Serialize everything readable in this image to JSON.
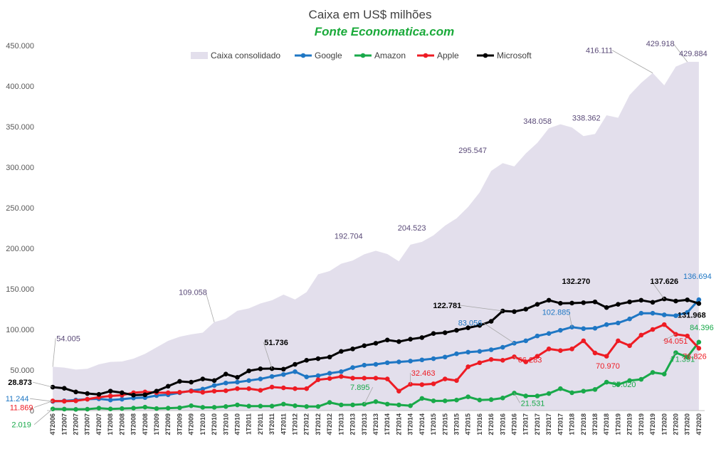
{
  "chart_data": {
    "type": "line",
    "title": "Caixa  em US$ milhões",
    "subtitle": "Fonte Economatica.com",
    "ylim": [
      0,
      450000
    ],
    "yticks": [
      "0",
      "50.000",
      "100.000",
      "150.000",
      "200.000",
      "250.000",
      "300.000",
      "350.000",
      "400.000",
      "450.000"
    ],
    "grid": false,
    "legend_position": "top",
    "categories": [
      "4T2006",
      "1T2007",
      "2T2007",
      "3T2007",
      "4T2007",
      "1T2008",
      "2T2008",
      "3T2008",
      "4T2008",
      "1T2009",
      "2T2009",
      "3T2009",
      "4T2009",
      "1T2010",
      "2T2010",
      "3T2010",
      "4T2010",
      "1T2011",
      "2T2011",
      "3T2011",
      "4T2011",
      "1T2012",
      "2T2012",
      "3T2012",
      "4T2012",
      "1T2013",
      "2T2013",
      "3T2013",
      "4T2013",
      "1T2014",
      "2T2014",
      "3T2014",
      "4T2014",
      "1T2015",
      "2T2015",
      "3T2015",
      "4T2015",
      "1T2016",
      "2T2016",
      "3T2016",
      "4T2016",
      "1T2017",
      "2T2017",
      "3T2017",
      "4T2017",
      "1T2018",
      "2T2018",
      "3T2018",
      "4T2018",
      "1T2019",
      "2T2019",
      "3T2019",
      "4T2019",
      "1T2020",
      "2T2020",
      "3T2020",
      "4T2020"
    ],
    "series": [
      {
        "name": "Caixa consolidado",
        "kind": "area",
        "color": "#e3dfec",
        "values": [
          54005,
          53000,
          50500,
          51500,
          57000,
          60000,
          60500,
          64000,
          70000,
          78000,
          86000,
          91000,
          94000,
          96000,
          109058,
          113000,
          123000,
          126000,
          132000,
          136000,
          143000,
          137000,
          146000,
          168000,
          172000,
          181000,
          185000,
          192704,
          197000,
          193000,
          184000,
          204523,
          208000,
          216000,
          228000,
          237000,
          251000,
          269000,
          295547,
          305000,
          301000,
          317000,
          330000,
          348058,
          353000,
          349000,
          338362,
          341000,
          364000,
          361000,
          389000,
          404000,
          416111,
          401000,
          424000,
          429918,
          429884
        ]
      },
      {
        "name": "Google",
        "kind": "line",
        "color": "#1f77c4",
        "values": [
          11244,
          12000,
          13000,
          14000,
          14500,
          13000,
          14000,
          15500,
          16000,
          18500,
          19500,
          22000,
          24500,
          26500,
          31000,
          34000,
          35000,
          37000,
          39000,
          42000,
          44500,
          48000,
          41500,
          43000,
          46000,
          48000,
          53000,
          56000,
          57000,
          59000,
          60000,
          61000,
          62500,
          64000,
          66000,
          70000,
          72000,
          73000,
          75000,
          78000,
          83056,
          86000,
          92000,
          95000,
          99000,
          102885,
          101000,
          101500,
          106000,
          108000,
          113000,
          120000,
          120000,
          118000,
          117000,
          121000,
          136694
        ]
      },
      {
        "name": "Amazon",
        "kind": "line",
        "color": "#19a94a",
        "values": [
          2019,
          1800,
          1500,
          1700,
          3000,
          2000,
          2500,
          3000,
          4200,
          2500,
          3000,
          3500,
          6000,
          4000,
          4000,
          5000,
          7000,
          5500,
          5500,
          5500,
          8000,
          6000,
          5000,
          5000,
          10000,
          7000,
          7000,
          7895,
          11000,
          8000,
          7000,
          6000,
          15000,
          12000,
          12000,
          13000,
          17000,
          13000,
          13500,
          15500,
          21531,
          18000,
          18000,
          21000,
          27000,
          22000,
          24000,
          26000,
          35000,
          32000,
          37020,
          38500,
          47000,
          45000,
          71391,
          66000,
          84396
        ]
      },
      {
        "name": "Apple",
        "kind": "line",
        "color": "#ee1c24",
        "values": [
          11869,
          11500,
          12000,
          14000,
          16500,
          18000,
          19000,
          22000,
          23000,
          22000,
          22000,
          22500,
          24000,
          22500,
          24000,
          24500,
          27000,
          27000,
          25000,
          29000,
          28000,
          27000,
          27000,
          38000,
          39500,
          42000,
          40000,
          40000,
          40000,
          39000,
          24000,
          32463,
          32000,
          33000,
          39000,
          37000,
          54000,
          59000,
          63000,
          62000,
          66283,
          60000,
          67000,
          76000,
          74000,
          76000,
          86000,
          70970,
          67000,
          86000,
          80000,
          93000,
          100000,
          106000,
          94051,
          92000,
          76826
        ]
      },
      {
        "name": "Microsoft",
        "kind": "line",
        "color": "#000000",
        "values": [
          28873,
          27500,
          23000,
          21000,
          20000,
          24000,
          22000,
          19000,
          19500,
          24000,
          30000,
          36000,
          35000,
          39000,
          37000,
          45000,
          41000,
          49000,
          51500,
          51736,
          51000,
          57000,
          62000,
          64000,
          66000,
          73000,
          76000,
          80000,
          83000,
          87000,
          85000,
          88000,
          90000,
          95000,
          96000,
          99000,
          102000,
          105000,
          110000,
          122781,
          122000,
          125000,
          131000,
          136000,
          132270,
          132500,
          133000,
          134000,
          127000,
          131000,
          134000,
          136000,
          133500,
          137626,
          135000,
          136500,
          131968
        ]
      }
    ],
    "annotations": [
      {
        "series": 0,
        "index": 0,
        "text": "54.005"
      },
      {
        "series": 0,
        "index": 14,
        "text": "109.058"
      },
      {
        "series": 0,
        "index": 27,
        "text": "192.704"
      },
      {
        "series": 0,
        "index": 31,
        "text": "204.523"
      },
      {
        "series": 0,
        "index": 38,
        "text": "295.547"
      },
      {
        "series": 0,
        "index": 43,
        "text": "348.058"
      },
      {
        "series": 0,
        "index": 46,
        "text": "338.362"
      },
      {
        "series": 0,
        "index": 52,
        "text": "416.111"
      },
      {
        "series": 0,
        "index": 55,
        "text": "429.918"
      },
      {
        "series": 0,
        "index": 56,
        "text": "429.884"
      },
      {
        "series": 1,
        "index": 0,
        "text": "11.244"
      },
      {
        "series": 1,
        "index": 40,
        "text": "83.056"
      },
      {
        "series": 1,
        "index": 45,
        "text": "102.885"
      },
      {
        "series": 1,
        "index": 56,
        "text": "136.694"
      },
      {
        "series": 2,
        "index": 0,
        "text": "2.019"
      },
      {
        "series": 2,
        "index": 27,
        "text": "7.895"
      },
      {
        "series": 2,
        "index": 40,
        "text": "21.531"
      },
      {
        "series": 2,
        "index": 50,
        "text": "37.020"
      },
      {
        "series": 2,
        "index": 54,
        "text": "71.391"
      },
      {
        "series": 2,
        "index": 56,
        "text": "84.396"
      },
      {
        "series": 3,
        "index": 0,
        "text": "11.869"
      },
      {
        "series": 3,
        "index": 31,
        "text": "32.463"
      },
      {
        "series": 3,
        "index": 40,
        "text": "66.283"
      },
      {
        "series": 3,
        "index": 47,
        "text": "70.970"
      },
      {
        "series": 3,
        "index": 54,
        "text": "94.051"
      },
      {
        "series": 3,
        "index": 56,
        "text": "76.826"
      },
      {
        "series": 4,
        "index": 0,
        "text": "28.873"
      },
      {
        "series": 4,
        "index": 19,
        "text": "51.736"
      },
      {
        "series": 4,
        "index": 39,
        "text": "122.781"
      },
      {
        "series": 4,
        "index": 44,
        "text": "132.270"
      },
      {
        "series": 4,
        "index": 53,
        "text": "137.626"
      },
      {
        "series": 4,
        "index": 56,
        "text": "131.968"
      }
    ]
  }
}
